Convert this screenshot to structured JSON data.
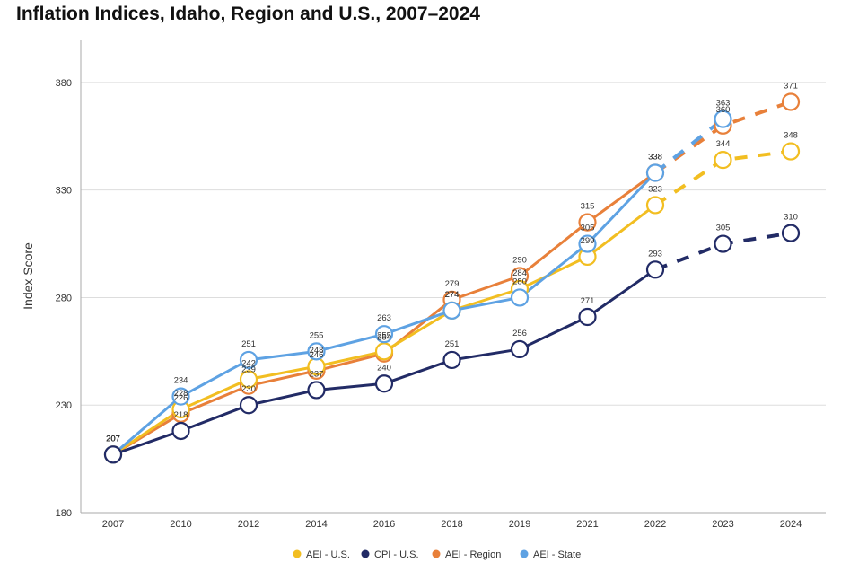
{
  "title": "Inflation Indices, Idaho, Region and U.S., 2007–2024",
  "chart_data": {
    "type": "line",
    "title": "Inflation Indices, Idaho, Region and U.S., 2007–2024",
    "xlabel": "",
    "ylabel": "Index Score",
    "categories": [
      "2007",
      "2010",
      "2012",
      "2014",
      "2016",
      "2018",
      "2019",
      "2021",
      "2022",
      "2023",
      "2024"
    ],
    "yticks": [
      "180",
      "230",
      "280",
      "330",
      "380"
    ],
    "ylim": [
      180,
      400
    ],
    "grid": true,
    "legend_position": "bottom",
    "projected_from_category": "2022",
    "series": [
      {
        "name": "AEI - Region",
        "color": "#E8803A",
        "values": [
          207,
          226,
          239,
          246,
          254,
          279,
          290,
          315,
          338,
          360,
          371
        ]
      },
      {
        "name": "AEI - U.S.",
        "color": "#F2BE21",
        "values": [
          207,
          228,
          242,
          248,
          255,
          274,
          284,
          299,
          323,
          344,
          348
        ]
      },
      {
        "name": "AEI - State",
        "color": "#5EA2E3",
        "values": [
          207,
          234,
          251,
          255,
          263,
          274,
          280,
          305,
          338,
          363,
          null
        ]
      },
      {
        "name": "CPI - U.S.",
        "color": "#222B66",
        "values": [
          207,
          218,
          230,
          237,
          240,
          251,
          256,
          271,
          293,
          305,
          310
        ]
      }
    ],
    "legend_order": [
      "AEI - U.S.",
      "CPI - U.S.",
      "AEI - Region",
      "AEI - State"
    ]
  }
}
